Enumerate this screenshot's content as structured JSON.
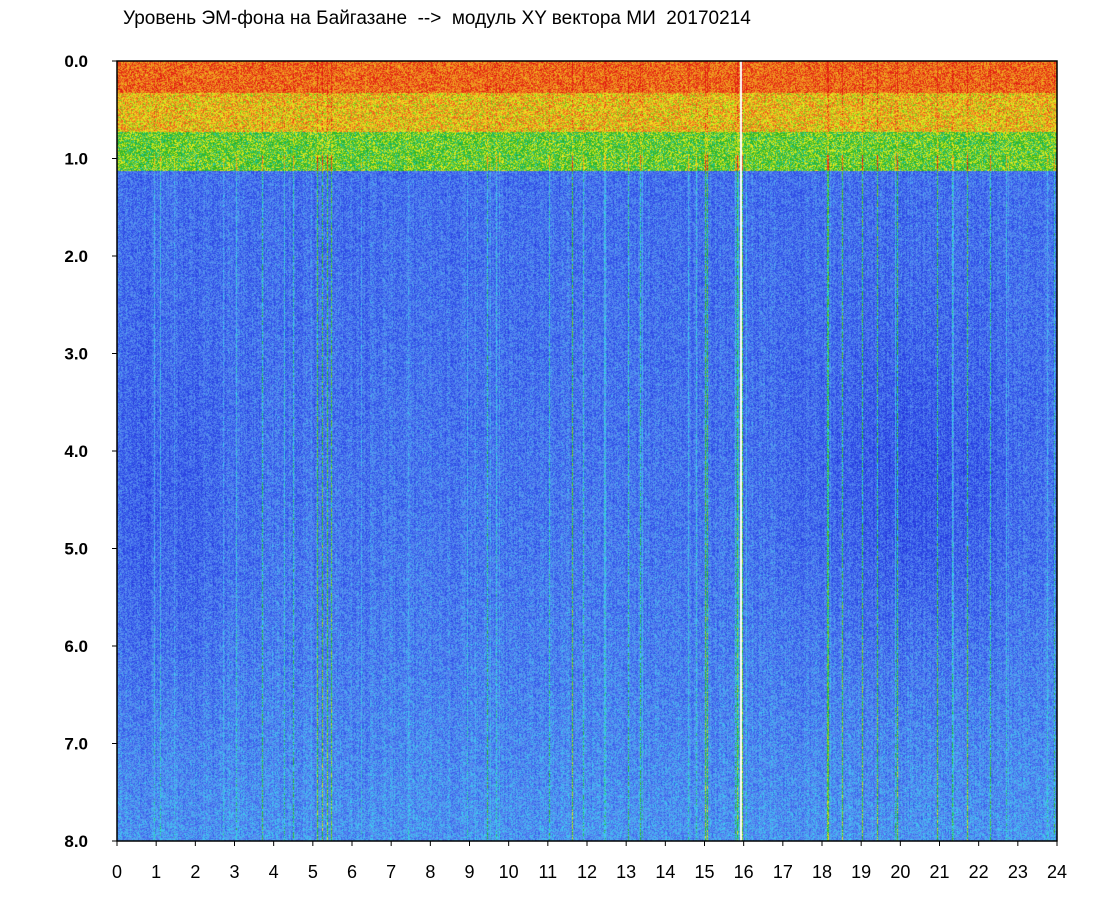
{
  "chart_data": {
    "type": "heatmap",
    "title": "Уровень ЭМ-фона на Байгазане  -->  модуль XY вектора МИ  20170214",
    "xlabel": "",
    "ylabel": "",
    "xlim": [
      0,
      24
    ],
    "ylim": [
      8.0,
      0.0
    ],
    "x_ticks": [
      "0",
      "1",
      "2",
      "3",
      "4",
      "5",
      "6",
      "7",
      "8",
      "9",
      "10",
      "11",
      "12",
      "13",
      "14",
      "15",
      "16",
      "17",
      "18",
      "19",
      "20",
      "21",
      "22",
      "23",
      "24"
    ],
    "y_ticks": [
      "0.0",
      "1.0",
      "2.0",
      "3.0",
      "4.0",
      "5.0",
      "6.0",
      "7.0",
      "8.0"
    ],
    "colormap": [
      "#1a1ad0",
      "#3050e8",
      "#5a8cf0",
      "#38d8f0",
      "#20b020",
      "#f0f020",
      "#f08020",
      "#e01010"
    ],
    "grid": false,
    "legend": "none"
  }
}
